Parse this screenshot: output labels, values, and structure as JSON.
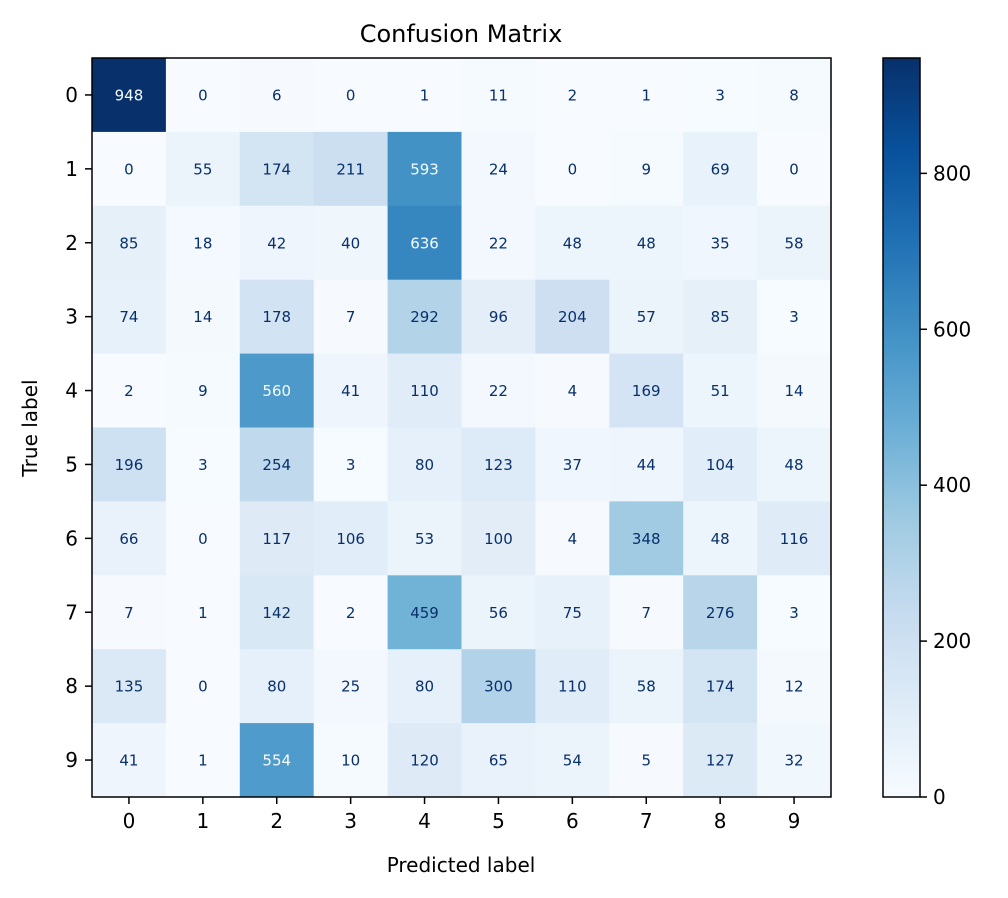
{
  "chart_data": {
    "type": "heatmap",
    "title": "Confusion Matrix",
    "xlabel": "Predicted label",
    "ylabel": "True label",
    "x_categories": [
      "0",
      "1",
      "2",
      "3",
      "4",
      "5",
      "6",
      "7",
      "8",
      "9"
    ],
    "y_categories": [
      "0",
      "1",
      "2",
      "3",
      "4",
      "5",
      "6",
      "7",
      "8",
      "9"
    ],
    "matrix": [
      [
        948,
        0,
        6,
        0,
        1,
        11,
        2,
        1,
        3,
        8
      ],
      [
        0,
        55,
        174,
        211,
        593,
        24,
        0,
        9,
        69,
        0
      ],
      [
        85,
        18,
        42,
        40,
        636,
        22,
        48,
        48,
        35,
        58
      ],
      [
        74,
        14,
        178,
        7,
        292,
        96,
        204,
        57,
        85,
        3
      ],
      [
        2,
        9,
        560,
        41,
        110,
        22,
        4,
        169,
        51,
        14
      ],
      [
        196,
        3,
        254,
        3,
        80,
        123,
        37,
        44,
        104,
        48
      ],
      [
        66,
        0,
        117,
        106,
        53,
        100,
        4,
        348,
        48,
        116
      ],
      [
        7,
        1,
        142,
        2,
        459,
        56,
        75,
        7,
        276,
        3
      ],
      [
        135,
        0,
        80,
        25,
        80,
        300,
        110,
        58,
        174,
        12
      ],
      [
        41,
        1,
        554,
        10,
        120,
        65,
        54,
        5,
        127,
        32
      ]
    ],
    "colormap": "Blues",
    "color_range": [
      0,
      948
    ],
    "colorbar_ticks": [
      "0",
      "200",
      "400",
      "600",
      "800"
    ],
    "colorbar_tick_values": [
      0,
      200,
      400,
      600,
      800
    ],
    "grid": false,
    "legend": "colorbar right"
  },
  "colors": {
    "text_dark": "#08306b",
    "text_light": "#f7fbff",
    "axis": "#000000"
  }
}
